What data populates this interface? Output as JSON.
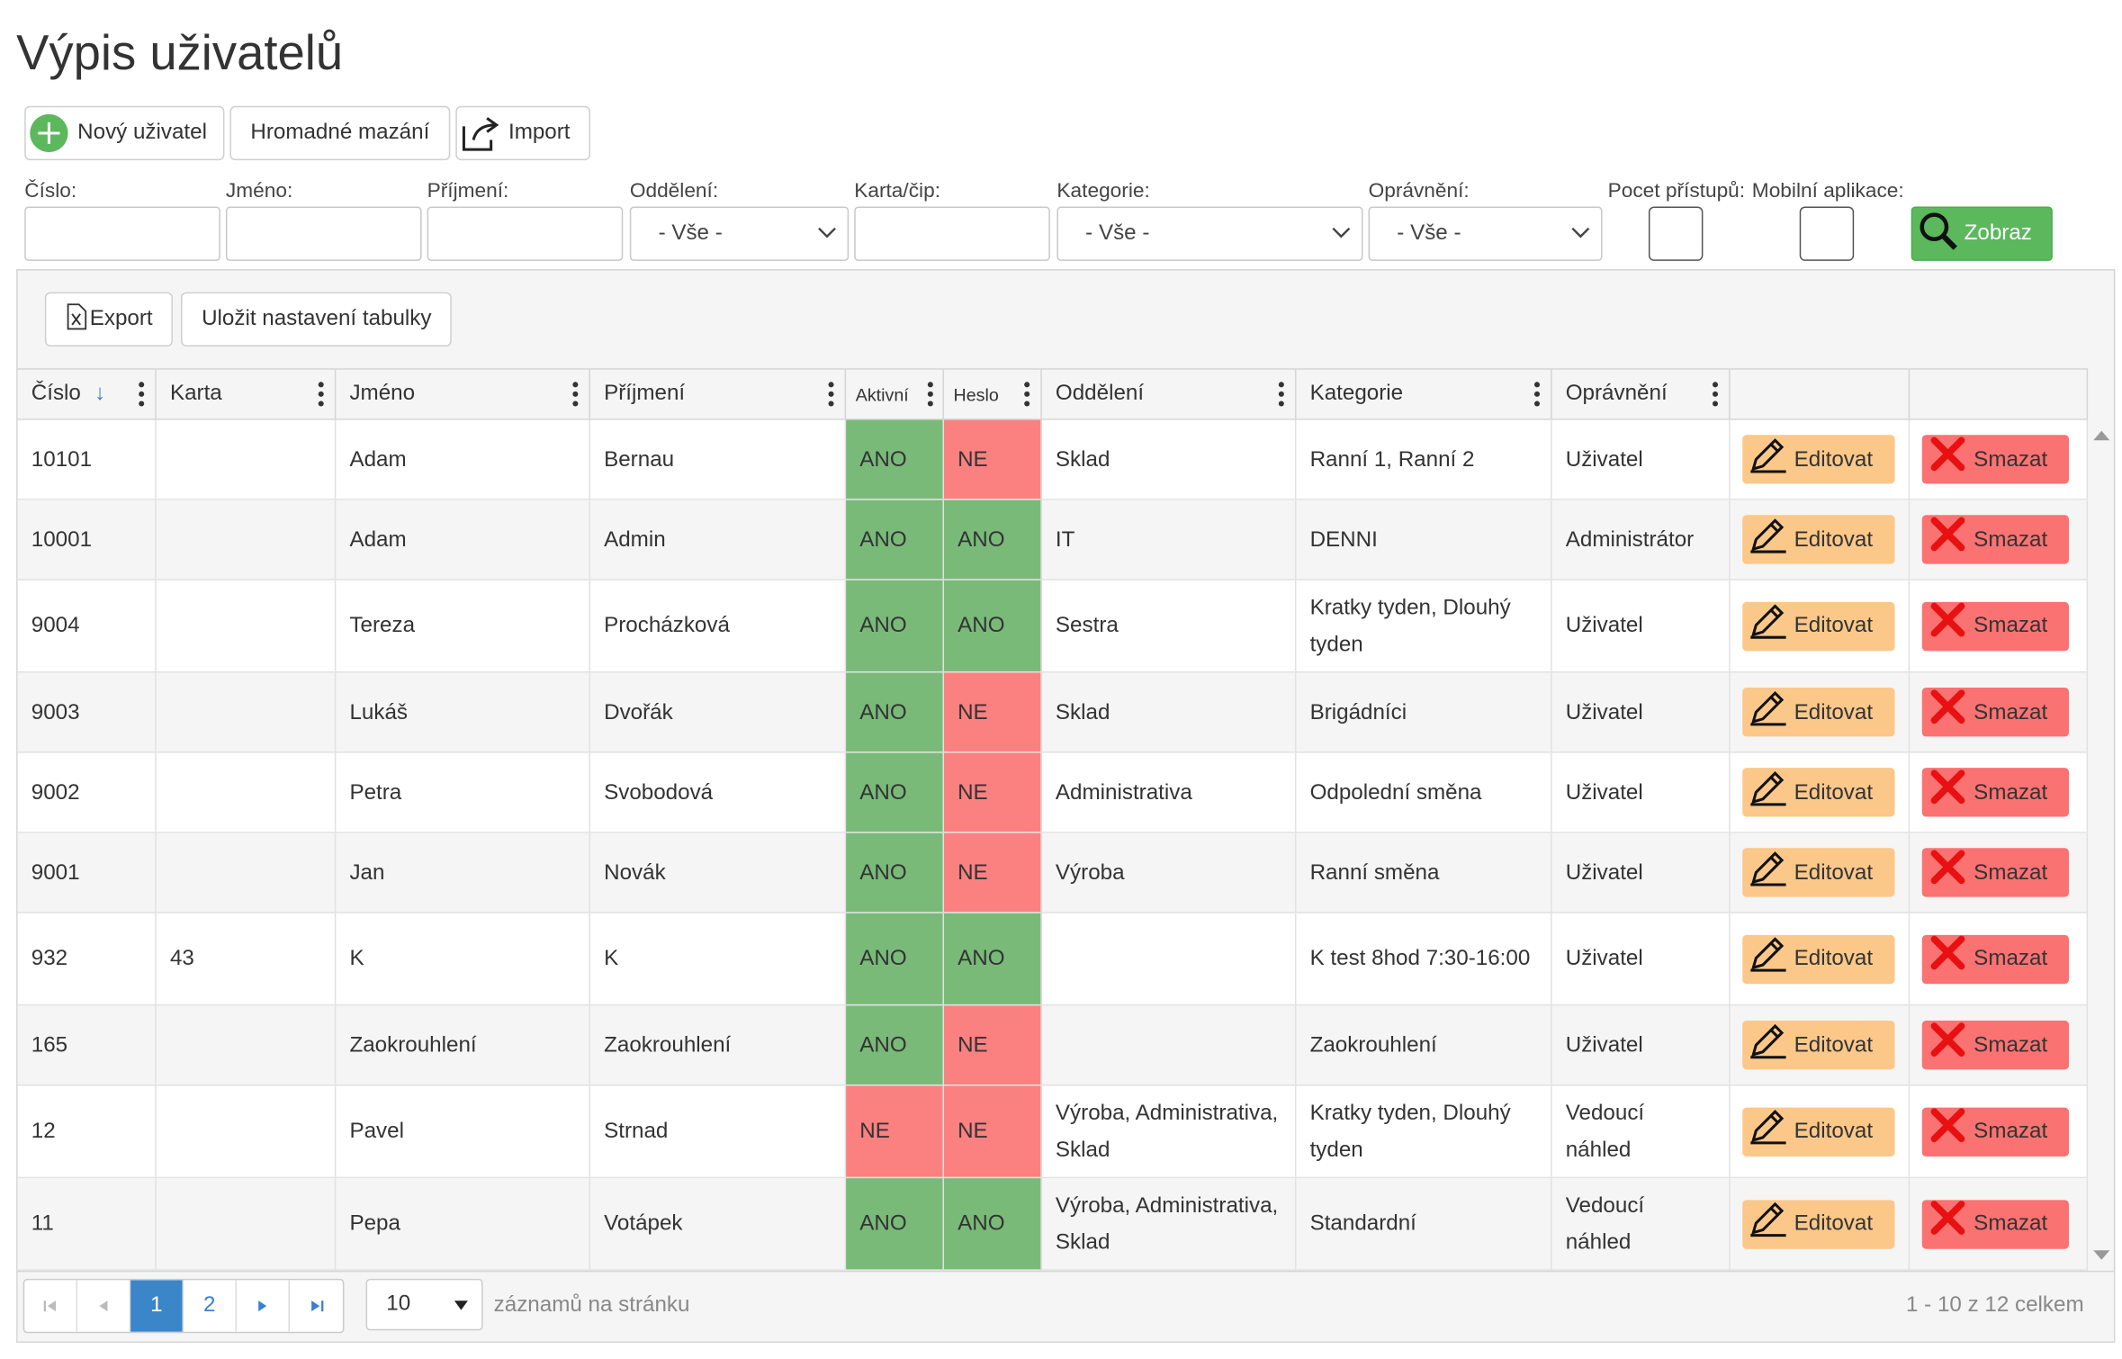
{
  "title": "Výpis uživatelů",
  "toolbar": {
    "new_user": "Nový uživatel",
    "bulk_delete": "Hromadné mazání",
    "import": "Import"
  },
  "filters": {
    "cislo": "Číslo:",
    "jmeno": "Jméno:",
    "prijmeni": "Příjmení:",
    "oddeleni": "Oddělení:",
    "karta": "Karta/čip:",
    "kategorie": "Kategorie:",
    "opravneni": "Oprávnění:",
    "pocet": "Pocet přístupů:",
    "mobilni": "Mobilní aplikace:",
    "all_option": "- Vše -",
    "show": "Zobraz"
  },
  "grid_toolbar": {
    "export": "Export",
    "save_settings": "Uložit nastavení tabulky"
  },
  "columns": [
    "Číslo",
    "Karta",
    "Jméno",
    "Příjmení",
    "Aktivní",
    "Heslo",
    "Oddělení",
    "Kategorie",
    "Oprávnění"
  ],
  "actions": {
    "edit": "Editovat",
    "delete": "Smazat"
  },
  "rows": [
    {
      "cislo": "10101",
      "karta": "",
      "jmeno": "Adam",
      "prijmeni": "Bernau",
      "aktivni": "ANO",
      "heslo": "NE",
      "oddeleni": "Sklad",
      "kategorie": "Ranní 1, Ranní 2",
      "opravneni": "Uživatel"
    },
    {
      "cislo": "10001",
      "karta": "",
      "jmeno": "Adam",
      "prijmeni": "Admin",
      "aktivni": "ANO",
      "heslo": "ANO",
      "oddeleni": "IT",
      "kategorie": "DENNI",
      "opravneni": "Administrátor"
    },
    {
      "cislo": "9004",
      "karta": "",
      "jmeno": "Tereza",
      "prijmeni": "Procházková",
      "aktivni": "ANO",
      "heslo": "ANO",
      "oddeleni": "Sestra",
      "kategorie": "Kratky tyden, Dlouhý tyden",
      "opravneni": "Uživatel"
    },
    {
      "cislo": "9003",
      "karta": "",
      "jmeno": "Lukáš",
      "prijmeni": "Dvořák",
      "aktivni": "ANO",
      "heslo": "NE",
      "oddeleni": "Sklad",
      "kategorie": "Brigádníci",
      "opravneni": "Uživatel"
    },
    {
      "cislo": "9002",
      "karta": "",
      "jmeno": "Petra",
      "prijmeni": "Svobodová",
      "aktivni": "ANO",
      "heslo": "NE",
      "oddeleni": "Administrativa",
      "kategorie": "Odpolední směna",
      "opravneni": "Uživatel"
    },
    {
      "cislo": "9001",
      "karta": "",
      "jmeno": "Jan",
      "prijmeni": "Novák",
      "aktivni": "ANO",
      "heslo": "NE",
      "oddeleni": "Výroba",
      "kategorie": "Ranní směna",
      "opravneni": "Uživatel"
    },
    {
      "cislo": "932",
      "karta": "43",
      "jmeno": "K",
      "prijmeni": "K",
      "aktivni": "ANO",
      "heslo": "ANO",
      "oddeleni": "",
      "kategorie": "K test 8hod 7:30-16:00",
      "opravneni": "Uživatel"
    },
    {
      "cislo": "165",
      "karta": "",
      "jmeno": "Zaokrouhlení",
      "prijmeni": "Zaokrouhlení",
      "aktivni": "ANO",
      "heslo": "NE",
      "oddeleni": "",
      "kategorie": "Zaokrouhlení",
      "opravneni": "Uživatel"
    },
    {
      "cislo": "12",
      "karta": "",
      "jmeno": "Pavel",
      "prijmeni": "Strnad",
      "aktivni": "NE",
      "heslo": "NE",
      "oddeleni": "Výroba, Administrativa, Sklad",
      "kategorie": "Kratky tyden, Dlouhý tyden",
      "opravneni": "Vedoucí náhled"
    },
    {
      "cislo": "11",
      "karta": "",
      "jmeno": "Pepa",
      "prijmeni": "Votápek",
      "aktivni": "ANO",
      "heslo": "ANO",
      "oddeleni": "Výroba, Administrativa, Sklad",
      "kategorie": "Standardní",
      "opravneni": "Vedoucí náhled"
    }
  ],
  "pager": {
    "pages": [
      "1",
      "2"
    ],
    "current": "1",
    "page_size": "10",
    "per_page_label": "záznamů na stránku",
    "info": "1 - 10 z 12 celkem"
  },
  "colors": {
    "green": "#79ba79",
    "red": "#fb8181",
    "edit": "#fbc889",
    "delete": "#fb7272",
    "accent": "#5cb85c",
    "primary": "#3b86c8"
  },
  "icons": {
    "new_user": "plus-circle-icon",
    "import": "import-icon",
    "export": "excel-icon",
    "show": "search-icon",
    "edit": "pencil-icon",
    "delete": "x-icon"
  }
}
